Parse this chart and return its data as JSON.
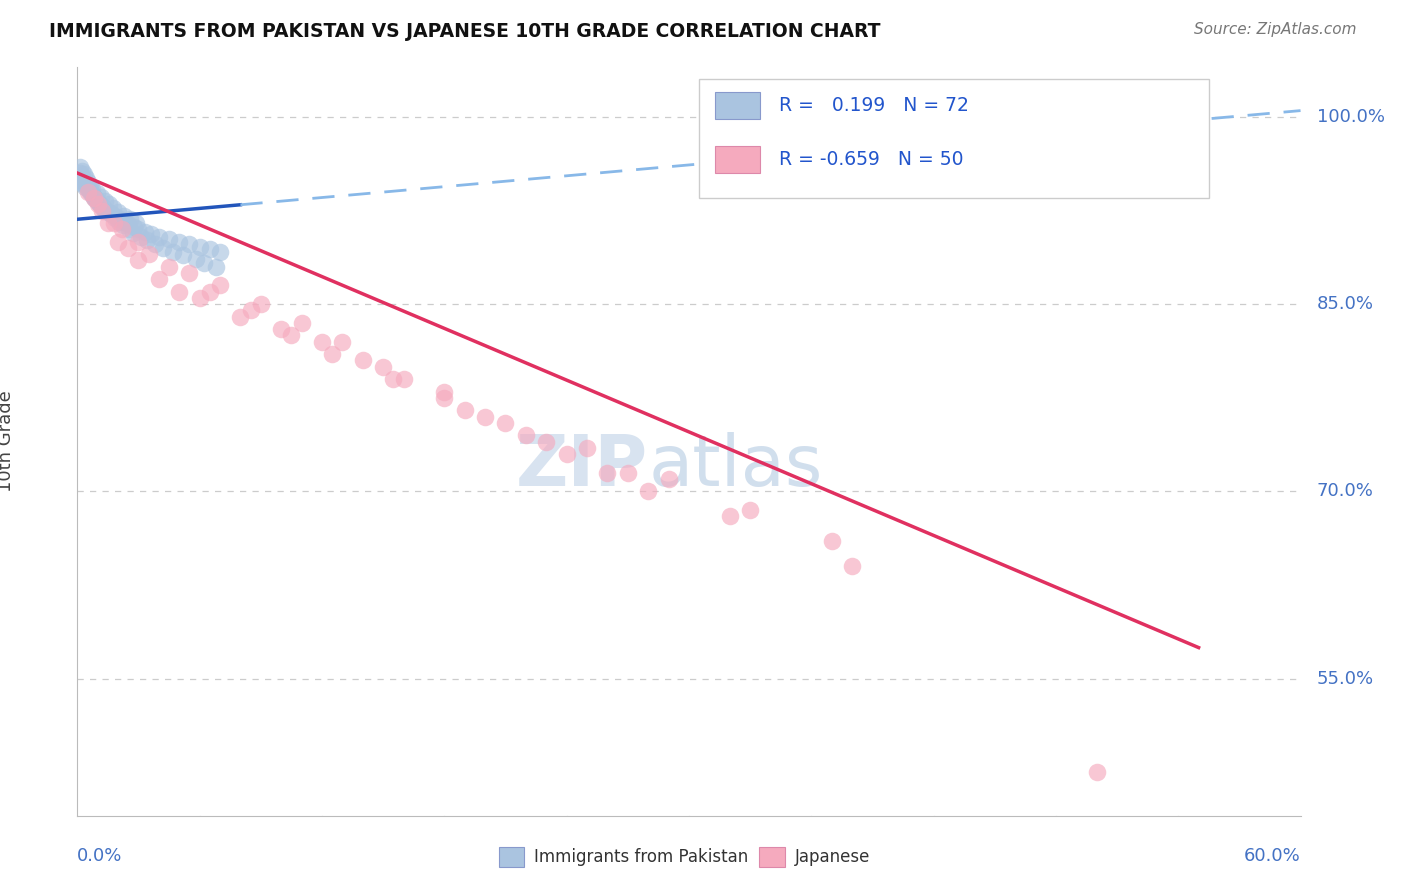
{
  "title": "IMMIGRANTS FROM PAKISTAN VS JAPANESE 10TH GRADE CORRELATION CHART",
  "source": "Source: ZipAtlas.com",
  "ylabel": "10th Grade",
  "ylabel_ticks": [
    55.0,
    70.0,
    85.0,
    100.0
  ],
  "xlim": [
    0.0,
    60.0
  ],
  "ylim": [
    44.0,
    104.0
  ],
  "R_pakistan": 0.199,
  "N_pakistan": 72,
  "R_japanese": -0.659,
  "N_japanese": 50,
  "pakistan_color": "#aac4e0",
  "japanese_color": "#f5aabe",
  "pakistan_line_color": "#2255bb",
  "pakistan_dash_color": "#88b8e8",
  "japanese_line_color": "#e03060",
  "pakistan_scatter_x": [
    0.1,
    0.2,
    0.3,
    0.4,
    0.5,
    0.6,
    0.7,
    0.8,
    0.9,
    1.0,
    1.1,
    1.2,
    1.3,
    1.5,
    1.7,
    1.9,
    2.1,
    2.3,
    2.5,
    2.8,
    3.0,
    3.3,
    3.6,
    4.0,
    4.5,
    5.0,
    5.5,
    6.0,
    6.5,
    7.0,
    0.15,
    0.25,
    0.35,
    0.45,
    0.55,
    0.65,
    0.75,
    0.85,
    1.05,
    1.25,
    1.45,
    1.65,
    1.85,
    2.05,
    2.25,
    2.55,
    2.75,
    3.1,
    3.4,
    3.8,
    4.2,
    4.7,
    5.2,
    5.8,
    6.2,
    6.8,
    0.12,
    0.22,
    0.32,
    0.42,
    0.52,
    0.62,
    0.72,
    0.95,
    1.15,
    1.35,
    1.55,
    1.75,
    2.0,
    2.3,
    2.6,
    2.9
  ],
  "pakistan_scatter_y": [
    95.0,
    94.8,
    94.6,
    94.4,
    94.2,
    94.0,
    93.8,
    93.6,
    93.4,
    93.2,
    93.0,
    92.8,
    92.6,
    92.4,
    92.2,
    92.0,
    91.8,
    91.6,
    91.4,
    91.2,
    91.0,
    90.8,
    90.6,
    90.4,
    90.2,
    90.0,
    89.8,
    89.6,
    89.4,
    89.2,
    95.5,
    95.2,
    94.9,
    94.6,
    94.3,
    94.0,
    93.7,
    93.4,
    93.1,
    92.8,
    92.5,
    92.2,
    91.9,
    91.6,
    91.3,
    91.0,
    90.7,
    90.4,
    90.1,
    89.8,
    89.5,
    89.2,
    88.9,
    88.6,
    88.3,
    88.0,
    96.0,
    95.7,
    95.4,
    95.1,
    94.8,
    94.5,
    94.2,
    93.9,
    93.6,
    93.3,
    93.0,
    92.7,
    92.4,
    92.1,
    91.8,
    91.5
  ],
  "japanese_scatter_x": [
    0.5,
    1.0,
    1.5,
    2.0,
    2.5,
    3.0,
    4.0,
    5.0,
    6.0,
    8.0,
    10.0,
    12.0,
    14.0,
    16.0,
    18.0,
    20.0,
    22.0,
    24.0,
    26.0,
    28.0,
    1.2,
    2.2,
    3.5,
    5.5,
    7.0,
    9.0,
    11.0,
    13.0,
    15.0,
    18.0,
    21.0,
    25.0,
    29.0,
    33.0,
    37.0,
    0.8,
    1.8,
    3.0,
    4.5,
    6.5,
    8.5,
    10.5,
    12.5,
    15.5,
    19.0,
    23.0,
    27.0,
    32.0,
    38.0,
    50.0
  ],
  "japanese_scatter_y": [
    94.0,
    93.0,
    91.5,
    90.0,
    89.5,
    88.5,
    87.0,
    86.0,
    85.5,
    84.0,
    83.0,
    82.0,
    80.5,
    79.0,
    77.5,
    76.0,
    74.5,
    73.0,
    71.5,
    70.0,
    92.5,
    91.0,
    89.0,
    87.5,
    86.5,
    85.0,
    83.5,
    82.0,
    80.0,
    78.0,
    75.5,
    73.5,
    71.0,
    68.5,
    66.0,
    93.5,
    91.5,
    90.0,
    88.0,
    86.0,
    84.5,
    82.5,
    81.0,
    79.0,
    76.5,
    74.0,
    71.5,
    68.0,
    64.0,
    47.5
  ],
  "pak_line_x0": 0.0,
  "pak_line_y0": 91.8,
  "pak_line_x1": 60.0,
  "pak_line_y1": 100.5,
  "pak_solid_end": 8.0,
  "jap_line_x0": 0.0,
  "jap_line_y0": 95.5,
  "jap_line_x1": 55.0,
  "jap_line_y1": 57.5,
  "background_color": "#ffffff",
  "grid_color": "#cccccc",
  "tick_color": "#4472C4",
  "watermark_color": "#c8d8ef"
}
